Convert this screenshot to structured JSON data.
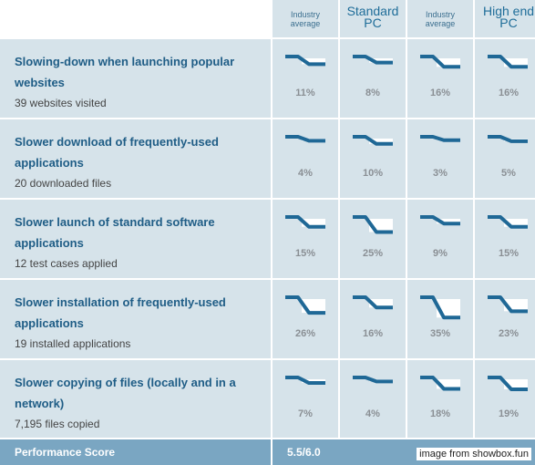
{
  "columns": [
    {
      "label_line1": "Industry",
      "label_line2": "average",
      "style": "small"
    },
    {
      "label_line1": "Standard",
      "label_line2": "PC",
      "style": "big"
    },
    {
      "label_line1": "Industry",
      "label_line2": "average",
      "style": "small"
    },
    {
      "label_line1": "High end",
      "label_line2": "PC",
      "style": "big"
    }
  ],
  "rows": [
    {
      "title": "Slowing-down when launching popular websites",
      "subtitle": "39 websites visited",
      "values": [
        "11%",
        "8%",
        "16%",
        "16%"
      ],
      "levels": [
        0.11,
        0.08,
        0.16,
        0.16
      ]
    },
    {
      "title": "Slower download of frequently-used applications",
      "subtitle": "20 downloaded files",
      "values": [
        "4%",
        "10%",
        "3%",
        "5%"
      ],
      "levels": [
        0.04,
        0.1,
        0.03,
        0.05
      ]
    },
    {
      "title": "Slower launch of standard software applications",
      "subtitle": "12 test cases applied",
      "values": [
        "15%",
        "25%",
        "9%",
        "15%"
      ],
      "levels": [
        0.15,
        0.25,
        0.09,
        0.15
      ]
    },
    {
      "title": "Slower installation of frequently-used applications",
      "subtitle": "19 installed applications",
      "values": [
        "26%",
        "16%",
        "35%",
        "23%"
      ],
      "levels": [
        0.26,
        0.16,
        0.35,
        0.23
      ]
    },
    {
      "title": "Slower copying of files (locally and in a network)",
      "subtitle": "7,195 files copied",
      "values": [
        "7%",
        "4%",
        "18%",
        "19%"
      ],
      "levels": [
        0.07,
        0.04,
        0.18,
        0.19
      ]
    }
  ],
  "footer": {
    "label": "Performance Score",
    "score": "5.5/6.0"
  },
  "credit": "image from showbox.fun",
  "colors": {
    "line": "#1f6896",
    "panel": "#d6e3ea",
    "footer": "#7aa6c2"
  }
}
